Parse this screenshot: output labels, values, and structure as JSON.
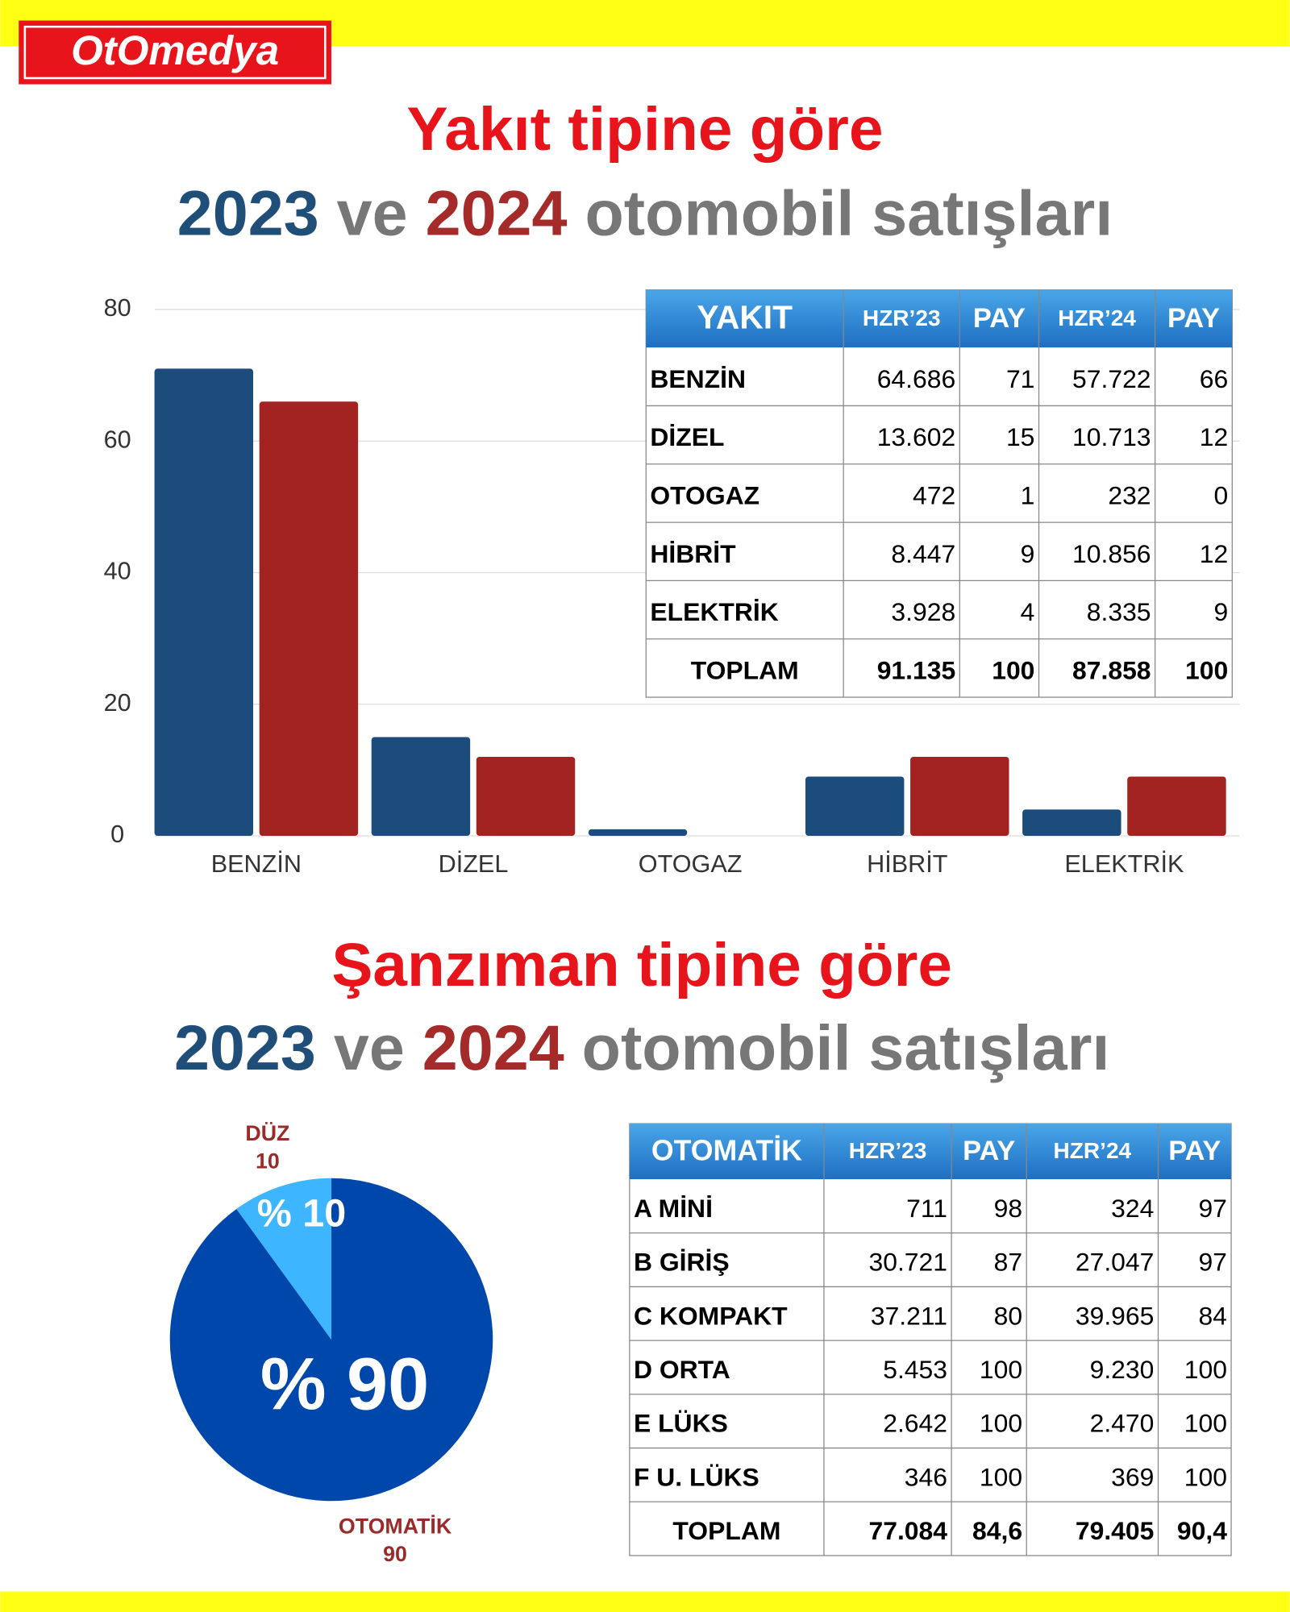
{
  "logo": "OtOmedya",
  "section1": {
    "title": "Yakıt tipine göre",
    "subtitle": [
      "2023",
      " ve ",
      "2024",
      " otomobil satışları"
    ]
  },
  "section2": {
    "title": "Şanzıman tipine göre",
    "subtitle": [
      "2023",
      " ve ",
      "2024",
      " otomobil satışları"
    ]
  },
  "chart_data": [
    {
      "type": "bar",
      "categories": [
        "BENZİN",
        "DİZEL",
        "OTOGAZ",
        "HİBRİT",
        "ELEKTRİK"
      ],
      "series": [
        {
          "color": "#1c4c7c",
          "values": [
            71,
            15,
            1,
            9,
            4
          ]
        },
        {
          "color": "#a2231f",
          "values": [
            66,
            12,
            0,
            12,
            9
          ]
        }
      ],
      "ylim": [
        0,
        80
      ],
      "yticks": [
        0,
        20,
        40,
        60,
        80
      ],
      "grid": true
    },
    {
      "type": "pie",
      "categories": [
        "OTOMATİK",
        "DÜZ"
      ],
      "values": [
        90,
        10
      ],
      "value_labels": [
        "% 90",
        "% 10"
      ],
      "colors": [
        "#0047ab",
        "#3db5ff"
      ]
    }
  ],
  "table1": {
    "header": [
      "YAKIT",
      "HZR’23",
      "PAY",
      "HZR’24",
      "PAY"
    ],
    "rows": [
      [
        "BENZİN",
        "64.686",
        "71",
        "57.722",
        "66"
      ],
      [
        "DİZEL",
        "13.602",
        "15",
        "10.713",
        "12"
      ],
      [
        "OTOGAZ",
        "472",
        "1",
        "232",
        "0"
      ],
      [
        "HİBRİT",
        "8.447",
        "9",
        "10.856",
        "12"
      ],
      [
        "ELEKTRİK",
        "3.928",
        "4",
        "8.335",
        "9"
      ],
      [
        "TOPLAM",
        "91.135",
        "100",
        "87.858",
        "100"
      ]
    ]
  },
  "table2": {
    "header": [
      "OTOMATİK",
      "HZR’23",
      "PAY",
      "HZR’24",
      "PAY"
    ],
    "rows": [
      [
        "A MİNİ",
        "711",
        "98",
        "324",
        "97"
      ],
      [
        "B GİRİŞ",
        "30.721",
        "87",
        "27.047",
        "97"
      ],
      [
        "C KOMPAKT",
        "37.211",
        "80",
        "39.965",
        "84"
      ],
      [
        "D ORTA",
        "5.453",
        "100",
        "9.230",
        "100"
      ],
      [
        "E LÜKS",
        "2.642",
        "100",
        "2.470",
        "100"
      ],
      [
        "F U. LÜKS",
        "346",
        "100",
        "369",
        "100"
      ],
      [
        "TOPLAM",
        "77.084",
        "84,6",
        "79.405",
        "90,4"
      ]
    ]
  }
}
